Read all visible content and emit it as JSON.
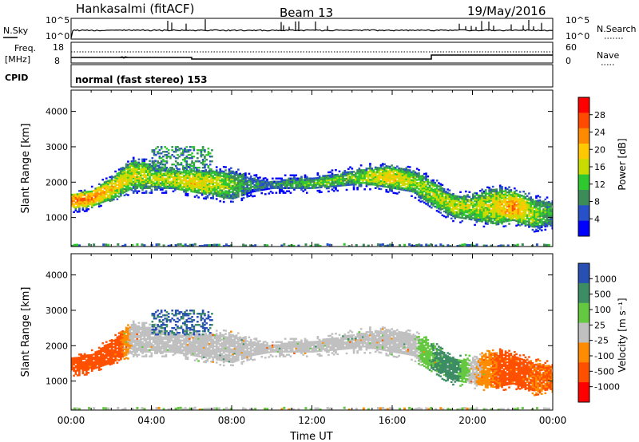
{
  "header": {
    "station": "Hankasalmi (fitACF)",
    "beam": "Beam 13",
    "date": "19/May/2016"
  },
  "strip_panels": {
    "nsky_label": "N.Sky",
    "nsearch_label": "N.Search",
    "freq_label_1": "Freq.",
    "freq_label_2": "[MHz]",
    "nave_label": "Nave",
    "cpid_label": "CPID",
    "cpid_text": "normal (fast stereo) 153",
    "noise_ticks_left": [
      "10^5",
      "10^0"
    ],
    "noise_ticks_right": [
      "10^5",
      "10^0"
    ],
    "freq_ticks": [
      "18",
      "8"
    ],
    "nave_ticks": [
      "60",
      "0"
    ]
  },
  "power_colorbar": {
    "label": "Power [dB]",
    "ticks": [
      "28",
      "24",
      "20",
      "16",
      "12",
      "8",
      "4"
    ],
    "colors": [
      "#ff0000",
      "#ff4a00",
      "#ff8a00",
      "#ffc800",
      "#c8dc00",
      "#30c830",
      "#3c8c5a",
      "#2850c8",
      "#0000ff"
    ]
  },
  "velocity_colorbar": {
    "label": "Velocity [m s⁻¹]",
    "ticks": [
      "1000",
      "500",
      "100",
      "25",
      "-25",
      "-100",
      "-500",
      "-1000"
    ],
    "colors": [
      "#2850b4",
      "#3c8c64",
      "#64c840",
      "#c0c0c0",
      "#ff8c00",
      "#ff5000",
      "#ff0000"
    ]
  },
  "chart_data": [
    {
      "type": "heatmap",
      "title": "Beam 13",
      "xlabel": "",
      "ylabel": "Slant Range [km]",
      "xlim_hours": [
        0,
        24
      ],
      "ylim": [
        180,
        4600
      ],
      "y_ticks": [
        "4000",
        "3000",
        "2000",
        "1000"
      ],
      "quantity": "Power [dB]",
      "echo_band_range_km": [
        {
          "ut": 0,
          "lo": 1250,
          "hi": 1650,
          "power_db": 24
        },
        {
          "ut": 1,
          "lo": 1300,
          "hi": 1750,
          "power_db": 22
        },
        {
          "ut": 2,
          "lo": 1500,
          "hi": 2100,
          "power_db": 18
        },
        {
          "ut": 3,
          "lo": 1800,
          "hi": 2600,
          "power_db": 16
        },
        {
          "ut": 4,
          "lo": 1800,
          "hi": 2500,
          "power_db": 14
        },
        {
          "ut": 5,
          "lo": 1800,
          "hi": 2300,
          "power_db": 16
        },
        {
          "ut": 6,
          "lo": 1700,
          "hi": 2300,
          "power_db": 18
        },
        {
          "ut": 7,
          "lo": 1600,
          "hi": 2300,
          "power_db": 16
        },
        {
          "ut": 8,
          "lo": 1500,
          "hi": 2300,
          "power_db": 12
        },
        {
          "ut": 9,
          "lo": 1700,
          "hi": 2100,
          "power_db": 8
        },
        {
          "ut": 10,
          "lo": 1800,
          "hi": 2000,
          "power_db": 8
        },
        {
          "ut": 11,
          "lo": 1800,
          "hi": 2100,
          "power_db": 10
        },
        {
          "ut": 12,
          "lo": 1800,
          "hi": 2100,
          "power_db": 12
        },
        {
          "ut": 13,
          "lo": 1850,
          "hi": 2200,
          "power_db": 12
        },
        {
          "ut": 14,
          "lo": 1900,
          "hi": 2300,
          "power_db": 12
        },
        {
          "ut": 15,
          "lo": 1900,
          "hi": 2400,
          "power_db": 16
        },
        {
          "ut": 16,
          "lo": 1800,
          "hi": 2400,
          "power_db": 18
        },
        {
          "ut": 17,
          "lo": 1700,
          "hi": 2300,
          "power_db": 14
        },
        {
          "ut": 18,
          "lo": 1300,
          "hi": 2000,
          "power_db": 14
        },
        {
          "ut": 19,
          "lo": 1000,
          "hi": 1600,
          "power_db": 16
        },
        {
          "ut": 20,
          "lo": 900,
          "hi": 1600,
          "power_db": 14
        },
        {
          "ut": 21,
          "lo": 800,
          "hi": 1800,
          "power_db": 16
        },
        {
          "ut": 22,
          "lo": 900,
          "hi": 1700,
          "power_db": 22
        },
        {
          "ut": 23,
          "lo": 700,
          "hi": 1500,
          "power_db": 14
        },
        {
          "ut": 24,
          "lo": 800,
          "hi": 1400,
          "power_db": 10
        }
      ]
    },
    {
      "type": "heatmap",
      "xlabel": "Time UT",
      "ylabel": "Slant Range [km]",
      "xlim_hours": [
        0,
        24
      ],
      "ylim": [
        180,
        4600
      ],
      "x_ticks": [
        "00:00",
        "04:00",
        "08:00",
        "12:00",
        "16:00",
        "20:00",
        "00:00"
      ],
      "y_ticks": [
        "4000",
        "3000",
        "2000",
        "1000"
      ],
      "quantity": "Velocity [m s⁻¹]",
      "echo_band_range_km": [
        {
          "ut": 0,
          "lo": 1150,
          "hi": 1650,
          "velocity": -200
        },
        {
          "ut": 1,
          "lo": 1200,
          "hi": 1750,
          "velocity": -200
        },
        {
          "ut": 2,
          "lo": 1500,
          "hi": 2100,
          "velocity": -200
        },
        {
          "ut": 3,
          "lo": 1800,
          "hi": 2600,
          "velocity": 0
        },
        {
          "ut": 4,
          "lo": 1800,
          "hi": 2500,
          "velocity": 0
        },
        {
          "ut": 5,
          "lo": 1800,
          "hi": 2300,
          "velocity": 0
        },
        {
          "ut": 6,
          "lo": 1700,
          "hi": 2300,
          "velocity": 0
        },
        {
          "ut": 7,
          "lo": 1600,
          "hi": 2300,
          "velocity": 0
        },
        {
          "ut": 8,
          "lo": 1500,
          "hi": 2300,
          "velocity": 0
        },
        {
          "ut": 9,
          "lo": 1700,
          "hi": 2100,
          "velocity": 0
        },
        {
          "ut": 10,
          "lo": 1800,
          "hi": 2000,
          "velocity": 0
        },
        {
          "ut": 11,
          "lo": 1800,
          "hi": 2100,
          "velocity": 0
        },
        {
          "ut": 12,
          "lo": 1800,
          "hi": 2100,
          "velocity": 0
        },
        {
          "ut": 13,
          "lo": 1850,
          "hi": 2200,
          "velocity": 0
        },
        {
          "ut": 14,
          "lo": 1900,
          "hi": 2300,
          "velocity": 0
        },
        {
          "ut": 15,
          "lo": 1900,
          "hi": 2400,
          "velocity": 0
        },
        {
          "ut": 16,
          "lo": 1800,
          "hi": 2400,
          "velocity": 0
        },
        {
          "ut": 17,
          "lo": 1700,
          "hi": 2300,
          "velocity": 0
        },
        {
          "ut": 18,
          "lo": 1300,
          "hi": 2000,
          "velocity": 100
        },
        {
          "ut": 19,
          "lo": 1000,
          "hi": 1600,
          "velocity": 150
        },
        {
          "ut": 20,
          "lo": 900,
          "hi": 1600,
          "velocity": 0
        },
        {
          "ut": 21,
          "lo": 800,
          "hi": 1800,
          "velocity": -100
        },
        {
          "ut": 22,
          "lo": 900,
          "hi": 1700,
          "velocity": -150
        },
        {
          "ut": 23,
          "lo": 700,
          "hi": 1500,
          "velocity": -100
        },
        {
          "ut": 24,
          "lo": 800,
          "hi": 1400,
          "velocity": -100
        }
      ],
      "positive_velocity_patches": [
        {
          "ut_start": 4,
          "ut_end": 7,
          "range_km": [
            2300,
            3000
          ],
          "velocity": 800
        }
      ]
    }
  ]
}
